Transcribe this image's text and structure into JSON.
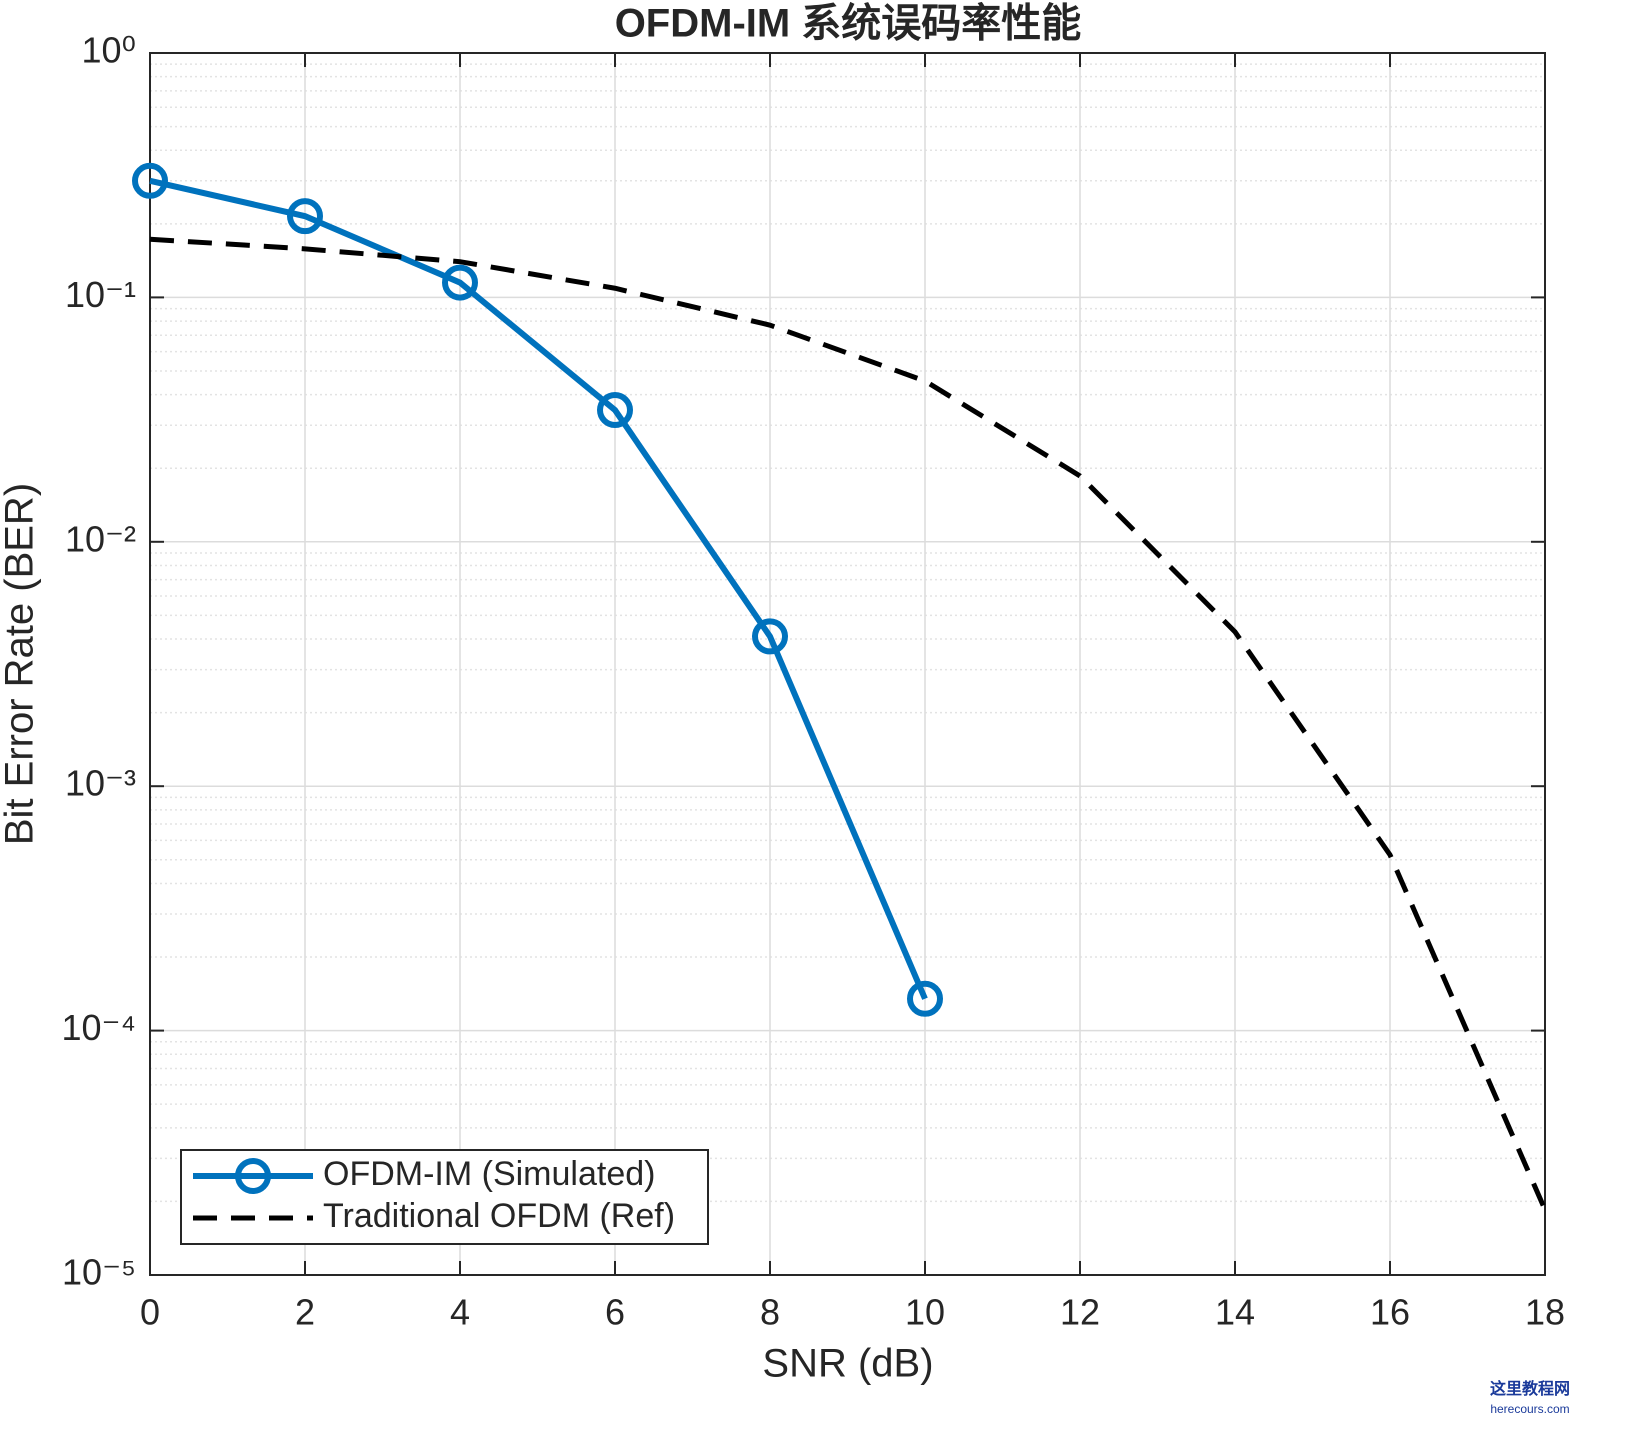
{
  "chart_data": {
    "type": "line",
    "title": "OFDM-IM 系统误码率性能",
    "xlabel": "SNR (dB)",
    "ylabel": "Bit Error Rate (BER)",
    "series": [
      {
        "name": "OFDM-IM (Simulated)",
        "color": "#0072bd",
        "style": "solid",
        "marker": "circle",
        "x": [
          0,
          2,
          4,
          6,
          8,
          10
        ],
        "values": [
          0.3,
          0.215,
          0.115,
          0.0346,
          0.0041,
          0.000135
        ]
      },
      {
        "name": "Traditional OFDM (Ref)",
        "color": "#000000",
        "style": "dashed",
        "marker": "none",
        "x": [
          0,
          2,
          4,
          6,
          8,
          10,
          12,
          14,
          16,
          18
        ],
        "values": [
          0.173,
          0.158,
          0.14,
          0.109,
          0.077,
          0.0455,
          0.0186,
          0.00428,
          0.000524,
          1.85e-05
        ]
      }
    ],
    "xlim": [
      0,
      18
    ],
    "xticks": [
      0,
      2,
      4,
      6,
      8,
      10,
      12,
      14,
      16,
      18
    ],
    "ylim": [
      1e-05,
      1
    ],
    "yscale": "log",
    "yticks": [
      {
        "value": 1,
        "label": "10⁰"
      },
      {
        "value": 0.1,
        "label": "10⁻¹"
      },
      {
        "value": 0.01,
        "label": "10⁻²"
      },
      {
        "value": 0.001,
        "label": "10⁻³"
      },
      {
        "value": 0.0001,
        "label": "10⁻⁴"
      },
      {
        "value": 1e-05,
        "label": "10⁻⁵"
      }
    ],
    "grid": true,
    "minor_grid": true,
    "legend": "southwest"
  },
  "watermark": {
    "name": "这里教程网",
    "url": "herecours.com"
  }
}
